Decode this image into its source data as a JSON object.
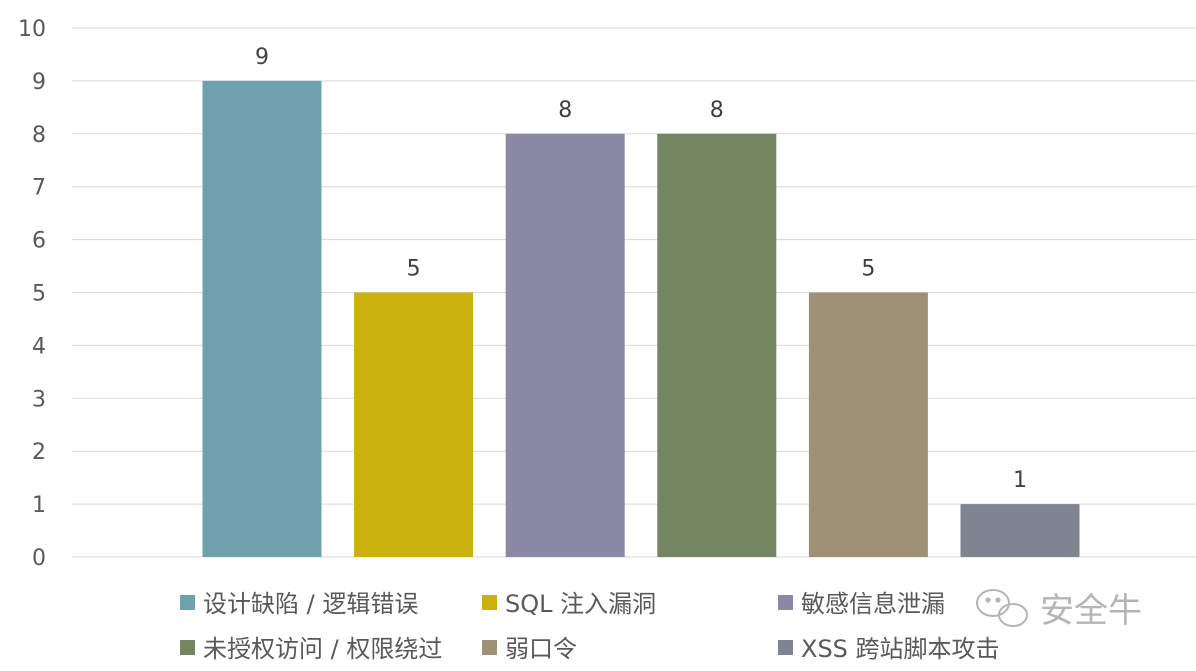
{
  "chart_data": {
    "type": "bar",
    "categories": [
      "设计缺陷 / 逻辑错误",
      "SQL 注入漏洞",
      "敏感信息泄漏",
      "未授权访问 / 权限绕过",
      "弱口令",
      "XSS 跨站脚本攻击"
    ],
    "values": [
      9,
      5,
      8,
      8,
      5,
      1
    ],
    "colors": [
      "#6fa0ad",
      "#cbb10f",
      "#8c89a6",
      "#748562",
      "#9e9174",
      "#7d8590"
    ],
    "ylim": [
      0,
      10
    ],
    "yticks": [
      0,
      1,
      2,
      3,
      4,
      5,
      6,
      7,
      8,
      9,
      10
    ],
    "grid": true,
    "legend_position": "bottom",
    "title": "",
    "xlabel": "",
    "ylabel": ""
  },
  "watermark": {
    "text": "安全牛",
    "icon": "wechat-icon"
  }
}
